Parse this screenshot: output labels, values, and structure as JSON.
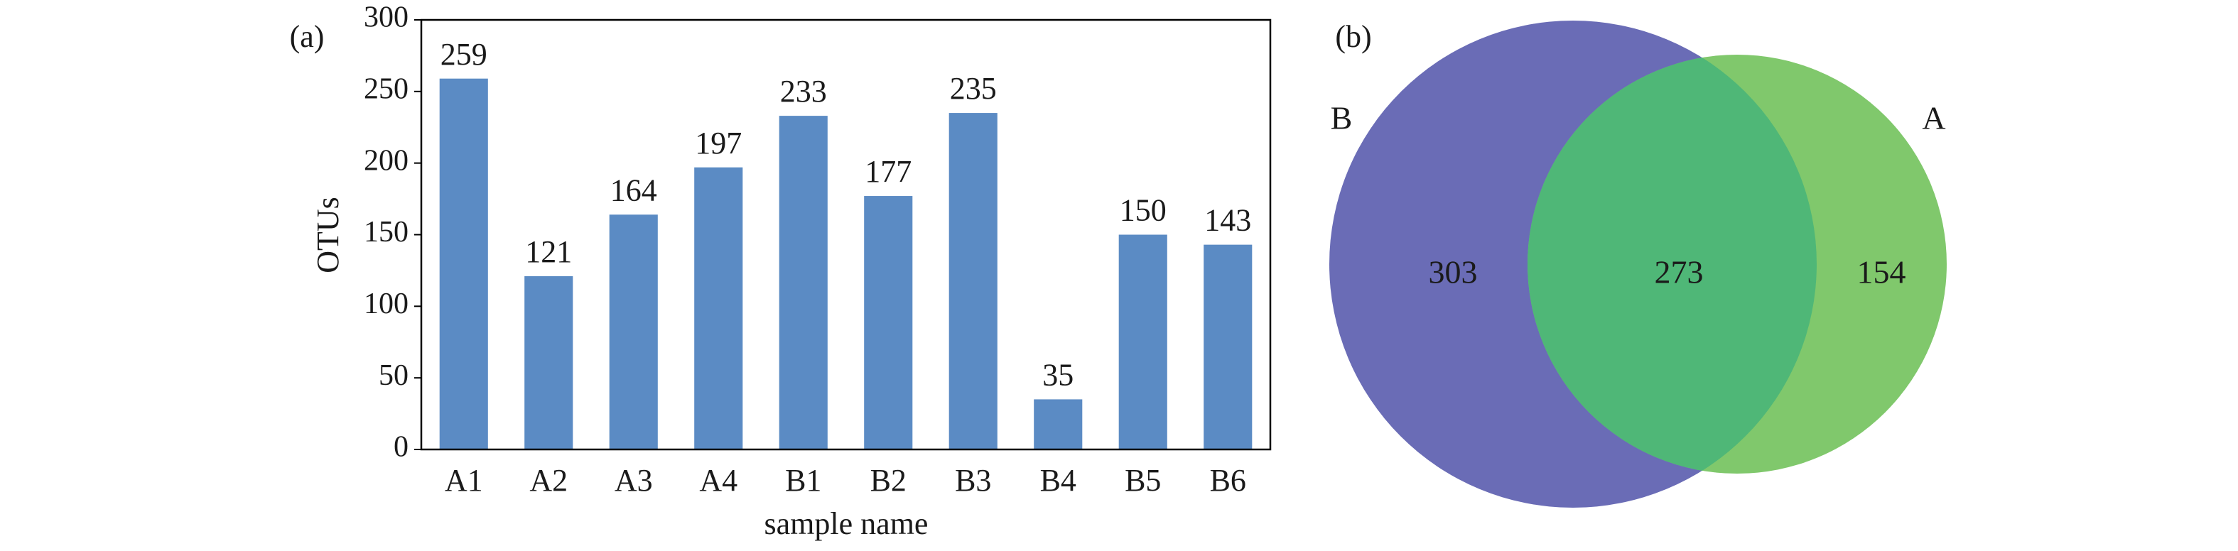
{
  "chart_data": [
    {
      "type": "bar",
      "panel": "(a)",
      "categories": [
        "A1",
        "A2",
        "A3",
        "A4",
        "B1",
        "B2",
        "B3",
        "B4",
        "B5",
        "B6"
      ],
      "values": [
        259,
        121,
        164,
        197,
        233,
        177,
        235,
        35,
        150,
        143
      ],
      "color": "#5b8bc4",
      "xlabel": "sample name",
      "ylabel": "OTUs",
      "ylim": [
        0,
        300
      ],
      "yticks": [
        0,
        50,
        100,
        150,
        200,
        250,
        300
      ]
    },
    {
      "type": "venn",
      "panel": "(b)",
      "sets": [
        {
          "name": "B",
          "value": 303,
          "color": "#6a6cb6"
        },
        {
          "name": "A",
          "value": 154,
          "color": "#80c86c"
        }
      ],
      "intersection": {
        "value": 273,
        "color": "#4fb777"
      }
    }
  ]
}
